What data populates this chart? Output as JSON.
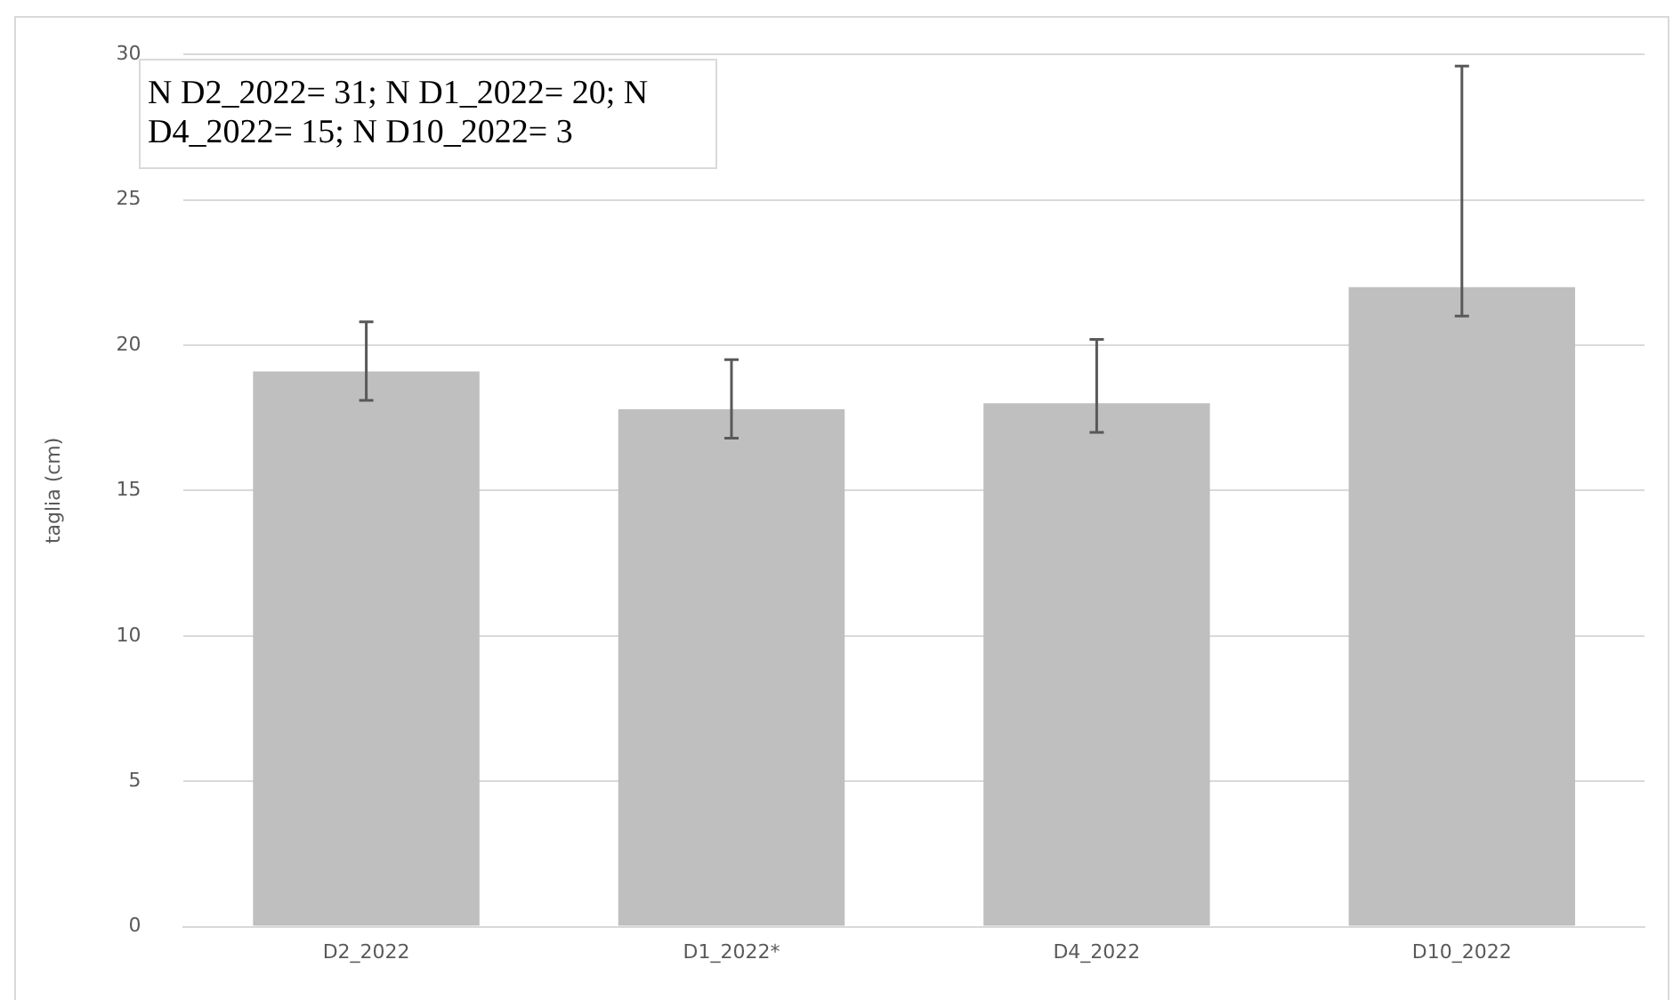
{
  "chart_data": {
    "type": "bar",
    "ylabel": "taglia (cm)",
    "categories": [
      "D2_2022",
      "D1_2022*",
      "D4_2022",
      "D10_2022"
    ],
    "values": [
      19.1,
      17.8,
      18.0,
      22.0
    ],
    "errors": [
      [
        18.1,
        20.8
      ],
      [
        16.8,
        19.5
      ],
      [
        17.0,
        20.2
      ],
      [
        21.0,
        29.6
      ]
    ],
    "color": "#bfbfbf",
    "ylim": [
      0,
      30
    ],
    "yticks": [
      0,
      5,
      10,
      15,
      20,
      25,
      30
    ],
    "grid": "y",
    "annotations": [
      "N D2_2022= 31; N D1_2022= 20; N D4_2022= 15; N D10_2022= 3"
    ]
  }
}
